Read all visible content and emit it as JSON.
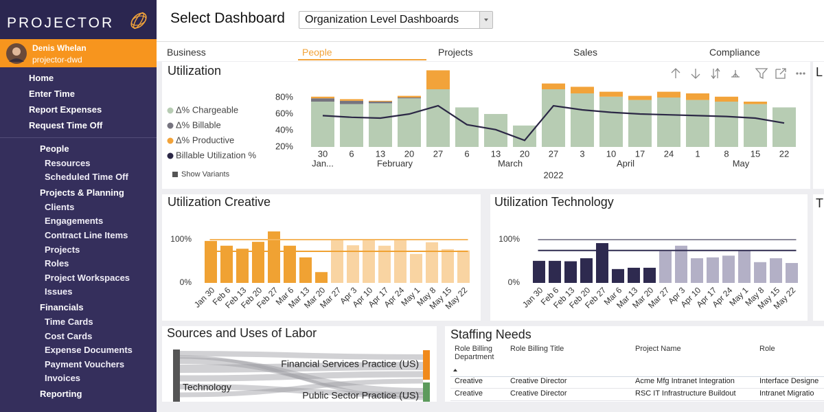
{
  "sidebar": {
    "brand": "PROJECTOR",
    "user_name": "Denis Whelan",
    "user_id": "projector-dwd",
    "menu": [
      "Home",
      "Enter Time",
      "Report Expenses",
      "Request Time Off"
    ],
    "sections": [
      {
        "label": "People",
        "items": [
          "Resources",
          "Scheduled Time Off"
        ]
      },
      {
        "label": "Projects & Planning",
        "items": [
          "Clients",
          "Engagements",
          "Contract Line Items",
          "Projects",
          "Roles",
          "Project Workspaces",
          "Issues"
        ]
      },
      {
        "label": "Financials",
        "items": [
          "Time Cards",
          "Cost Cards",
          "Expense Documents",
          "Payment Vouchers",
          "Invoices"
        ]
      },
      {
        "label": "Reporting",
        "items": []
      }
    ]
  },
  "header": {
    "title": "Select Dashboard",
    "dropdown": "Organization Level Dashboards"
  },
  "tabs": {
    "items": [
      "Business",
      "People",
      "Projects",
      "Sales",
      "Compliance"
    ],
    "active": 1
  },
  "chart_data": [
    {
      "type": "bar_line",
      "title": "Utilization",
      "categories": [
        "30",
        "6",
        "13",
        "20",
        "27",
        "6",
        "13",
        "20",
        "27",
        "3",
        "10",
        "17",
        "24",
        "1",
        "8",
        "15",
        "22"
      ],
      "months": [
        "Jan...",
        "February",
        "March",
        "April",
        "May"
      ],
      "year": "2022",
      "toggle": "Show Variants",
      "series": [
        {
          "name": "Δ% Chargeable",
          "color": "#b7ccb3",
          "kind": "bar",
          "values": [
            55,
            52,
            53,
            59,
            70,
            48,
            40,
            26,
            70,
            65,
            61,
            57,
            60,
            57,
            55,
            52,
            48
          ]
        },
        {
          "name": "Δ% Billable",
          "color": "#76747f",
          "kind": "bar",
          "values": [
            4,
            4,
            2,
            1,
            0,
            0,
            0,
            0,
            0,
            0,
            0,
            0,
            0,
            0,
            0,
            0,
            0
          ]
        },
        {
          "name": "Δ% Productive",
          "color": "#f2a33a",
          "kind": "bar",
          "values": [
            2,
            2,
            1,
            2,
            23,
            0,
            0,
            0,
            7,
            8,
            6,
            5,
            7,
            8,
            6,
            3,
            0
          ]
        },
        {
          "name": "Billable Utilization %",
          "color": "#2b2745",
          "kind": "line",
          "values": [
            58,
            56,
            55,
            60,
            70,
            47,
            41,
            28,
            70,
            65,
            62,
            60,
            59,
            58,
            57,
            55,
            49
          ]
        }
      ],
      "ylim": [
        20,
        100
      ],
      "yticks": [
        {
          "value": 20,
          "label": "20%"
        },
        {
          "value": 40,
          "label": "40%"
        },
        {
          "value": 60,
          "label": "60%"
        },
        {
          "value": 80,
          "label": "80%"
        }
      ]
    },
    {
      "type": "bar",
      "title": "Utilization Creative",
      "categories": [
        "Jan 30",
        "Feb 6",
        "Feb 13",
        "Feb 20",
        "Feb 27",
        "Mar 6",
        "Mar 13",
        "Mar 20",
        "Mar 27",
        "Apr 3",
        "Apr 10",
        "Apr 17",
        "Apr 24",
        "May 1",
        "May 8",
        "May 15",
        "May 22"
      ],
      "values": [
        97,
        86,
        79,
        95,
        119,
        86,
        59,
        25,
        100,
        87,
        100,
        86,
        100,
        67,
        94,
        78,
        75
      ],
      "colors": [
        "#f0a233",
        "#f0a233",
        "#f0a233",
        "#f0a233",
        "#f0a233",
        "#f0a233",
        "#f0a233",
        "#f0a233",
        "#f9d4a2",
        "#f9d4a2",
        "#f9d4a2",
        "#f9d4a2",
        "#f9d4a2",
        "#f9d4a2",
        "#f9d4a2",
        "#f9d4a2",
        "#f9d4a2"
      ],
      "reference_lines": [
        {
          "value": 100,
          "color": "#f5b65e"
        },
        {
          "value": 73,
          "color": "#f0a233"
        }
      ],
      "ylim": [
        0,
        130
      ],
      "yticks": [
        {
          "value": 0,
          "label": "0%"
        },
        {
          "value": 100,
          "label": "100%"
        }
      ]
    },
    {
      "type": "bar",
      "title": "Utilization Technology",
      "categories": [
        "Jan 30",
        "Feb 6",
        "Feb 13",
        "Feb 20",
        "Feb 27",
        "Mar 6",
        "Mar 13",
        "Mar 20",
        "Mar 27",
        "Apr 3",
        "Apr 10",
        "Apr 17",
        "Apr 24",
        "May 1",
        "May 8",
        "May 15",
        "May 22"
      ],
      "values": [
        51,
        51,
        50,
        57,
        92,
        32,
        35,
        35,
        73,
        86,
        57,
        59,
        63,
        76,
        48,
        57,
        46
      ],
      "colors": [
        "#2e2a4f",
        "#2e2a4f",
        "#2e2a4f",
        "#2e2a4f",
        "#2e2a4f",
        "#2e2a4f",
        "#2e2a4f",
        "#2e2a4f",
        "#b3b0c6",
        "#b3b0c6",
        "#b3b0c6",
        "#b3b0c6",
        "#b3b0c6",
        "#b3b0c6",
        "#b3b0c6",
        "#b3b0c6",
        "#b3b0c6"
      ],
      "reference_lines": [
        {
          "value": 100,
          "color": "#8a889a"
        },
        {
          "value": 75,
          "color": "#2e2a4f"
        }
      ],
      "ylim": [
        0,
        130
      ],
      "yticks": [
        {
          "value": 0,
          "label": "0%"
        },
        {
          "value": 100,
          "label": "100%"
        }
      ]
    }
  ],
  "sankey": {
    "title": "Sources and Uses of Labor",
    "source": "Technology",
    "targets": [
      "Financial Services Practice (US)",
      "Public Sector Practice (US)"
    ]
  },
  "staffing": {
    "title": "Staffing Needs",
    "columns": [
      "Role Billing Department",
      "Role Billing Title",
      "Project Name",
      "Role"
    ],
    "rows": [
      [
        "Creative",
        "Creative Director",
        "Acme Mfg Intranet Integration",
        "Interface Designe"
      ],
      [
        "Creative",
        "Creative Director",
        "RSC IT Infrastructure Buildout",
        "Intranet Migratio"
      ]
    ]
  },
  "cut_panels": [
    "L",
    "T"
  ]
}
